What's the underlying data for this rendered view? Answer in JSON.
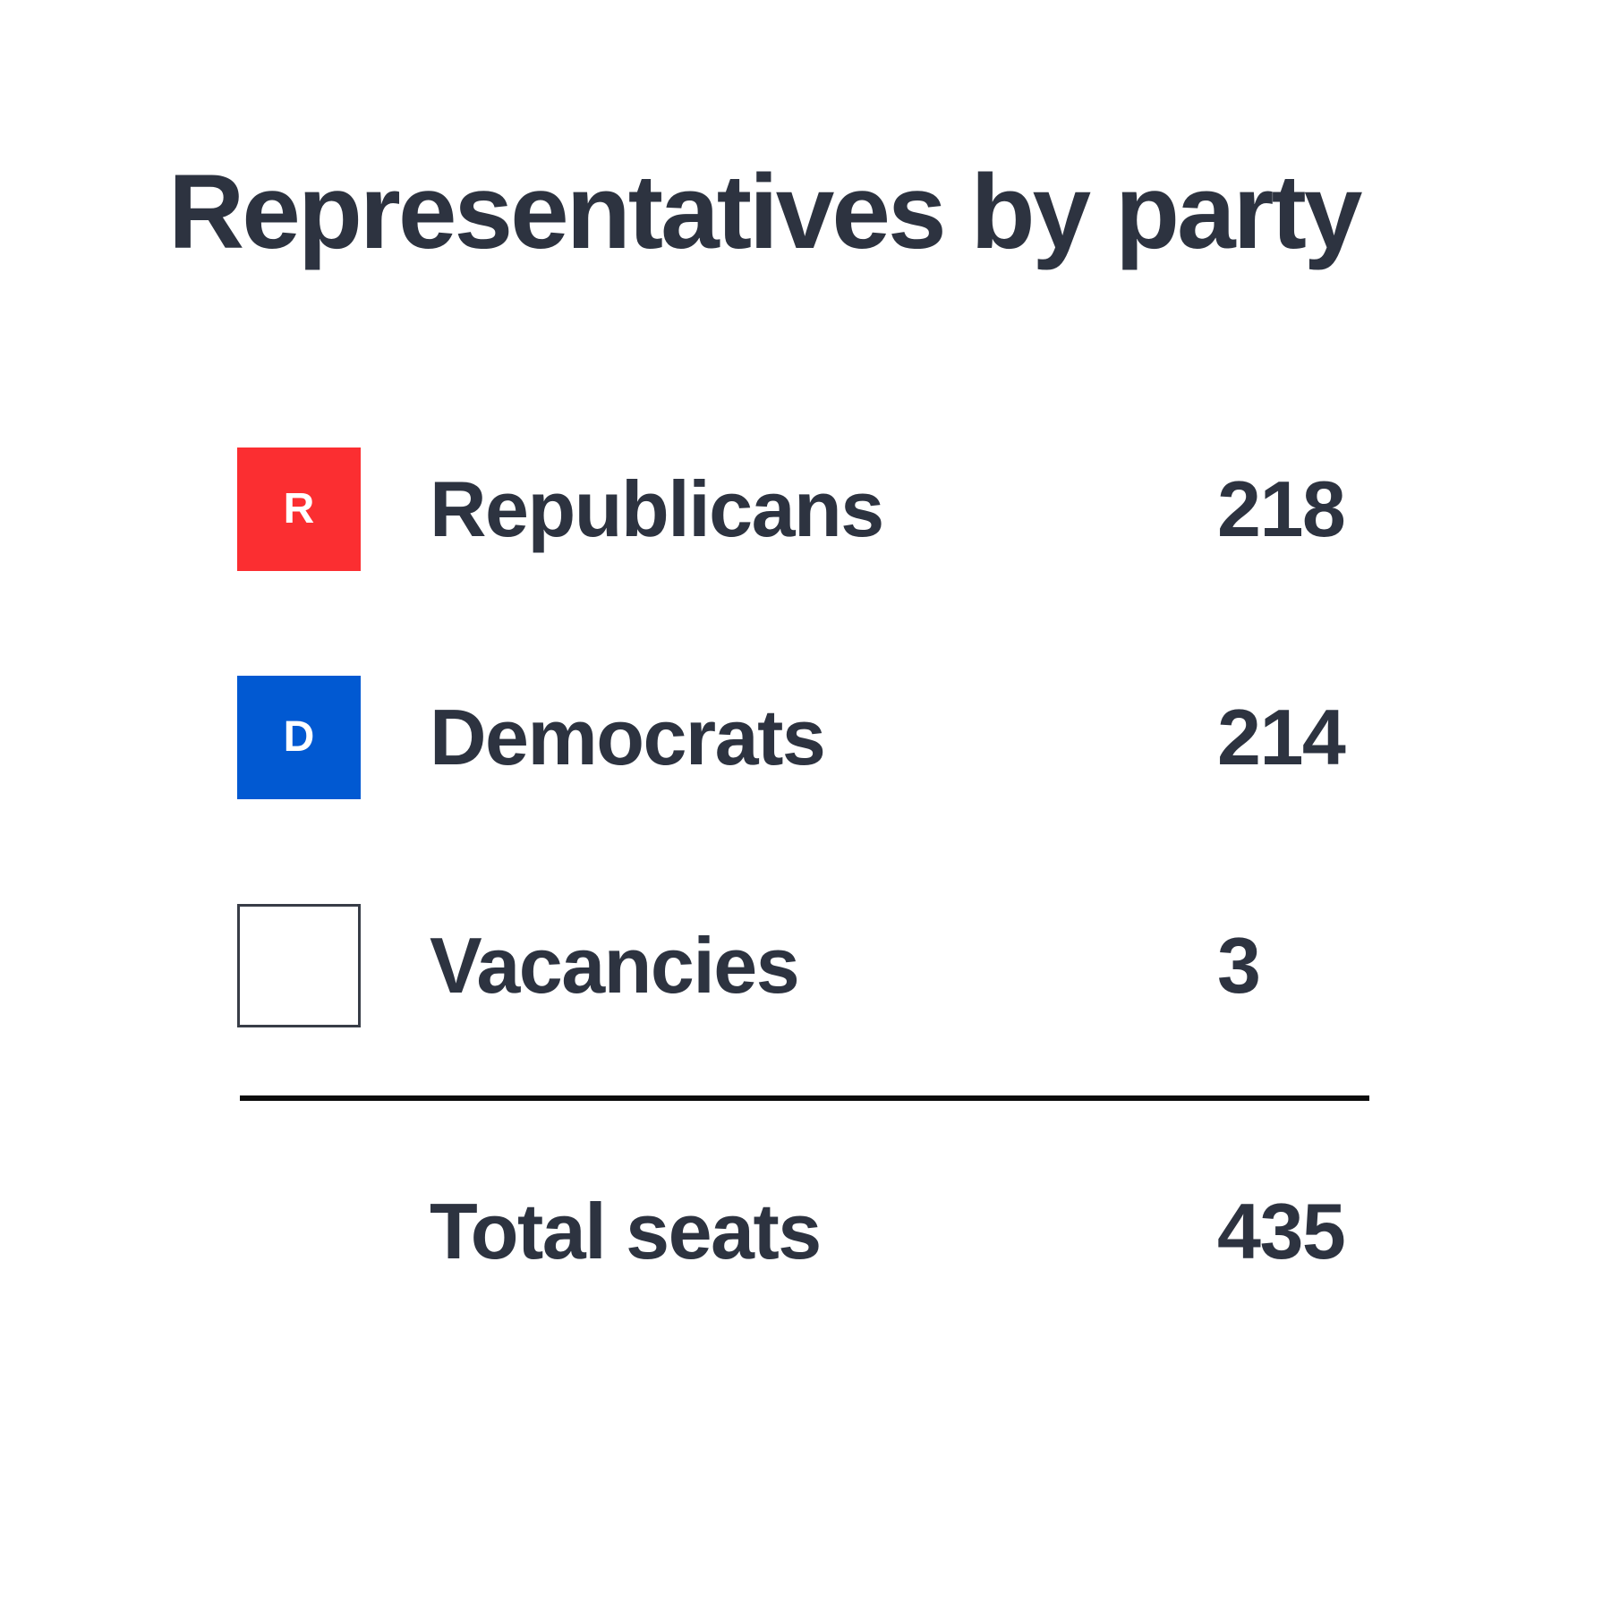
{
  "title": "Representatives by party",
  "rows": [
    {
      "label": "Republicans",
      "value": "218",
      "swatch_letter": "R",
      "swatch_color": "#fb2e31"
    },
    {
      "label": "Democrats",
      "value": "214",
      "swatch_letter": "D",
      "swatch_color": "#0159d2"
    },
    {
      "label": "Vacancies",
      "value": "3",
      "swatch_letter": "",
      "swatch_color": "#ffffff"
    }
  ],
  "total": {
    "label": "Total seats",
    "value": "435"
  },
  "colors": {
    "text": "#2d3340",
    "republican_red": "#fb2e31",
    "democrat_blue": "#0159d2",
    "vacancy_border": "#383d47",
    "divider": "#0b0b0b",
    "background": "#ffffff",
    "swatch_letter": "#ffffff"
  },
  "chart_data": {
    "type": "table",
    "title": "Representatives by party",
    "categories": [
      "Republicans",
      "Democrats",
      "Vacancies"
    ],
    "values": [
      218,
      214,
      3
    ],
    "series": [
      {
        "name": "Republicans",
        "values": [
          218
        ],
        "color": "#fb2e31"
      },
      {
        "name": "Democrats",
        "values": [
          214
        ],
        "color": "#0159d2"
      },
      {
        "name": "Vacancies",
        "values": [
          3
        ],
        "color": "#ffffff"
      }
    ],
    "total_label": "Total seats",
    "total_value": 435,
    "legend_position": "left",
    "grid": false
  }
}
